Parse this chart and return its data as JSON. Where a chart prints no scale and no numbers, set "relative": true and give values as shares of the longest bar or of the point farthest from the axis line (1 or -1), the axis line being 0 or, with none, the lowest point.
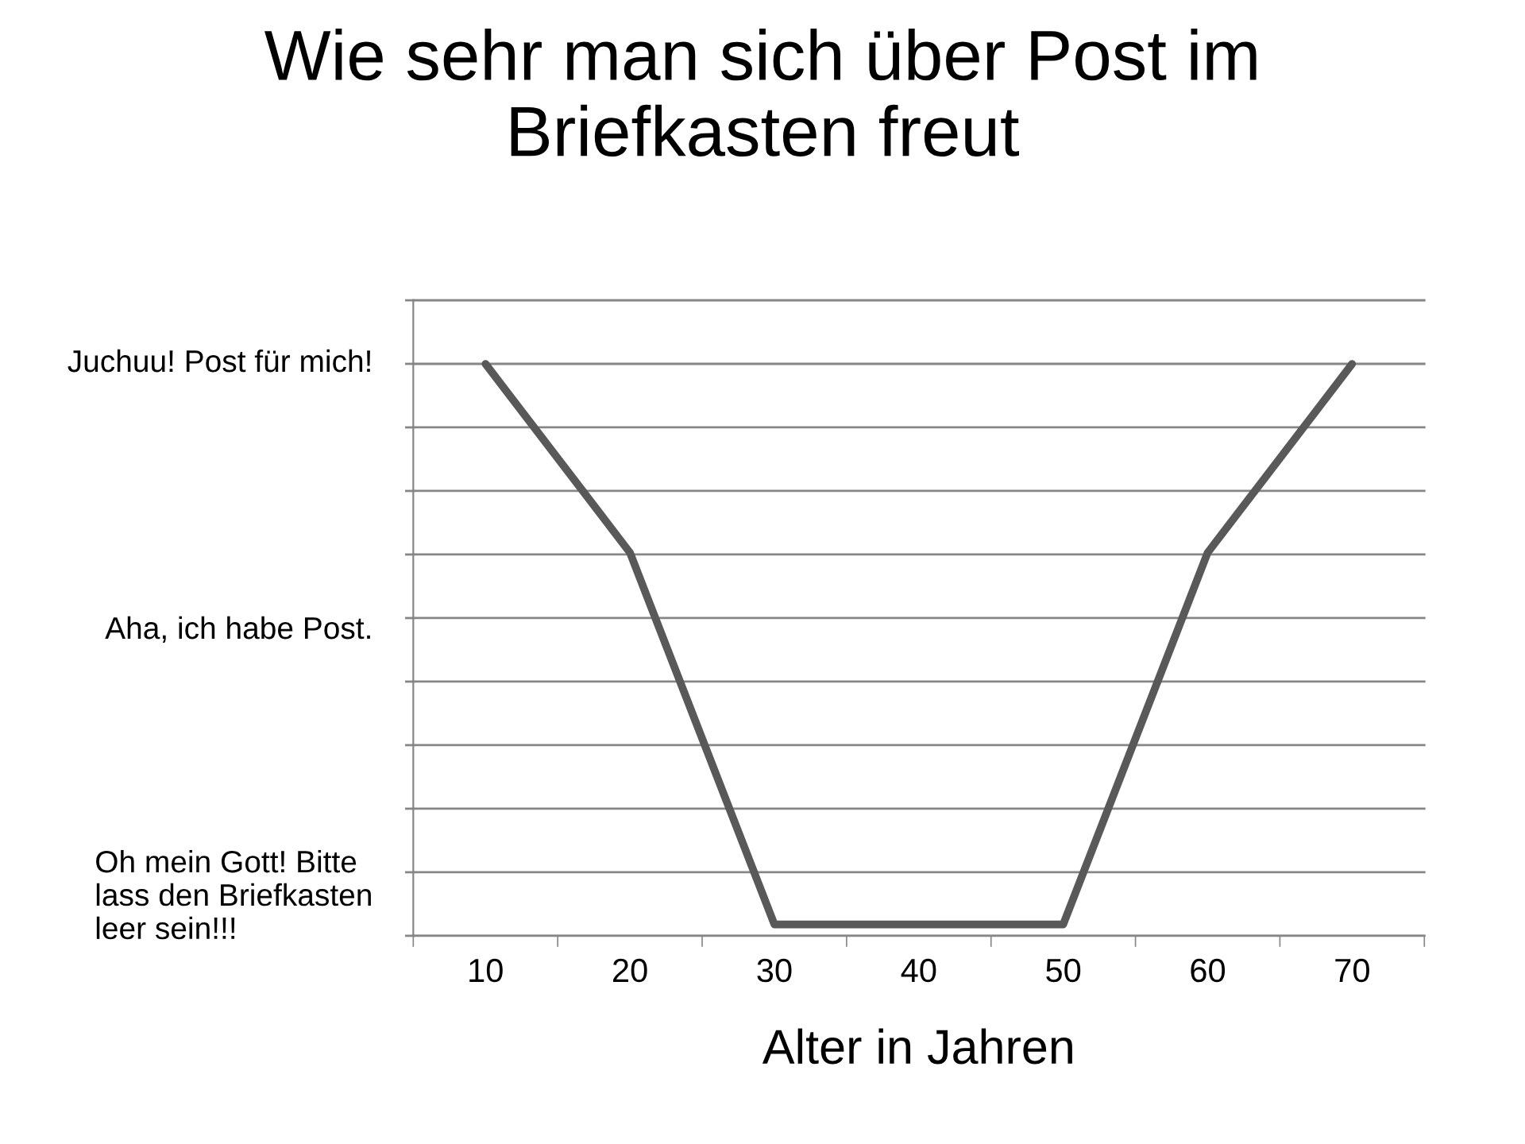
{
  "chart_data": {
    "type": "line",
    "title": "Wie sehr man sich über Post im\nBriefkasten freut",
    "xlabel": "Alter in Jahren",
    "categories": [
      "10",
      "20",
      "30",
      "40",
      "50",
      "60",
      "70"
    ],
    "series": [
      {
        "color": "#595959",
        "values": [
          1,
          0.67,
          0.02,
          0.02,
          0.02,
          0.67,
          1
        ]
      }
    ],
    "relative": true,
    "annotations": [
      "Juchuu! Post für mich!",
      "Aha, ich habe Post.",
      "Oh mein Gott! Bitte\nlass den Briefkasten\nleer sein!!!"
    ],
    "grid": "y",
    "marker": "none",
    "line_style": "solid",
    "legend": false
  }
}
